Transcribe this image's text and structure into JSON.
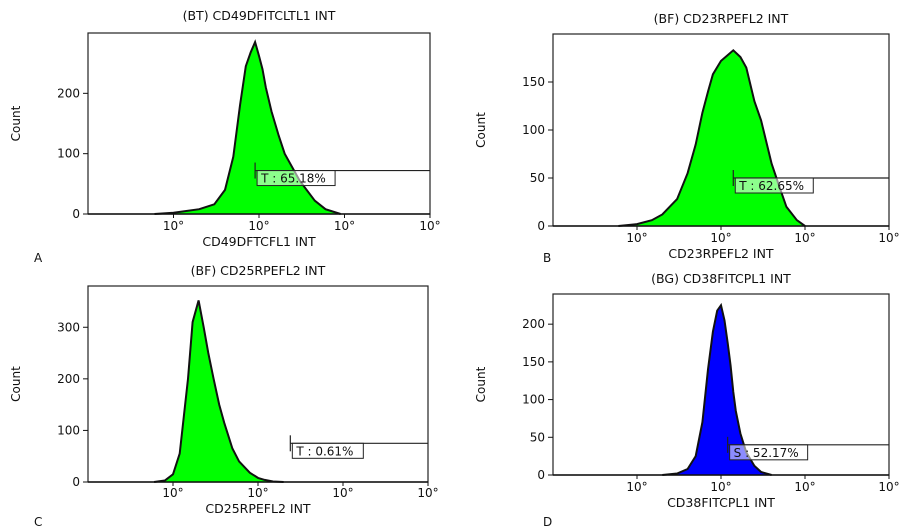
{
  "panels": [
    {
      "letter": "A",
      "chart_data": {
        "type": "area",
        "title": "(BT) CD49DFITCLTL1 INT",
        "xlabel": "CD49DFTCFL1 INT",
        "ylabel": "Count",
        "x_scale": "log",
        "xlim": [
          0.1,
          1000
        ],
        "xticks": [
          1,
          10,
          100,
          1000
        ],
        "xtick_labels": [
          "10°",
          "10°",
          "10°",
          "10°"
        ],
        "ylim": [
          0,
          300
        ],
        "yticks": [
          0,
          100,
          200
        ],
        "fill": "#00ff00",
        "series": [
          {
            "x": [
              0.6,
              1,
              2,
              3,
              4,
              5,
              6,
              7,
              8,
              9,
              10,
              11,
              12,
              14,
              17,
              20,
              30,
              45,
              60,
              90
            ],
            "values": [
              0,
              2,
              8,
              16,
              40,
              95,
              180,
              245,
              268,
              285,
              262,
              240,
              210,
              170,
              130,
              100,
              55,
              22,
              8,
              0
            ]
          }
        ],
        "marker": {
          "label": "T : 65.18%",
          "x_start": 9,
          "x_end": 1000,
          "y": 72
        }
      }
    },
    {
      "letter": "B",
      "chart_data": {
        "type": "area",
        "title": "(BF) CD23RPEFL2 INT",
        "xlabel": "CD23RPEFL2 INT",
        "ylabel": "Count",
        "x_scale": "log",
        "xlim": [
          0.1,
          1000
        ],
        "xticks": [
          1,
          10,
          100,
          1000
        ],
        "xtick_labels": [
          "10°",
          "10°",
          "10°",
          "10°"
        ],
        "ylim": [
          0,
          200
        ],
        "yticks": [
          0,
          50,
          100,
          150
        ],
        "fill": "#00ff00",
        "series": [
          {
            "x": [
              0.6,
              1,
              1.5,
              2,
              3,
              4,
              5,
              6,
              7,
              8,
              10,
              12,
              14,
              17,
              20,
              25,
              30,
              40,
              50,
              60,
              80,
              100
            ],
            "values": [
              0,
              2,
              6,
              12,
              28,
              55,
              85,
              118,
              140,
              158,
              172,
              178,
              183,
              176,
              165,
              130,
              110,
              65,
              40,
              20,
              6,
              0
            ]
          }
        ],
        "marker": {
          "label": "T : 62.65%",
          "x_start": 14,
          "x_end": 1000,
          "y": 50
        }
      }
    },
    {
      "letter": "C",
      "chart_data": {
        "type": "area",
        "title": "(BF) CD25RPEFL2 INT",
        "xlabel": "CD25RPEFL2 INT",
        "ylabel": "Count",
        "x_scale": "log",
        "xlim": [
          0.1,
          1000
        ],
        "xticks": [
          1,
          10,
          100,
          1000
        ],
        "xtick_labels": [
          "10°",
          "10°",
          "10°",
          "10°"
        ],
        "ylim": [
          0,
          380
        ],
        "yticks": [
          0,
          100,
          200,
          300
        ],
        "fill": "#00ff00",
        "series": [
          {
            "x": [
              0.6,
              0.8,
              1,
              1.2,
              1.5,
              1.7,
              2,
              2.3,
              2.6,
              3,
              3.5,
              4,
              5,
              6,
              8,
              10,
              12,
              15,
              20
            ],
            "values": [
              0,
              3,
              15,
              55,
              200,
              310,
              352,
              300,
              250,
              200,
              150,
              115,
              65,
              40,
              18,
              8,
              4,
              1,
              0
            ]
          }
        ],
        "marker": {
          "label": "T : 0.61%",
          "x_start": 24,
          "x_end": 1000,
          "y": 75
        }
      }
    },
    {
      "letter": "D",
      "chart_data": {
        "type": "area",
        "title": "(BG) CD38FITCPL1 INT",
        "xlabel": "CD38FITCPL1 INT",
        "ylabel": "Count",
        "x_scale": "log",
        "xlim": [
          0.1,
          1000
        ],
        "xticks": [
          1,
          10,
          100,
          1000
        ],
        "xtick_labels": [
          "10°",
          "10°",
          "10°",
          "10°"
        ],
        "ylim": [
          0,
          240
        ],
        "yticks": [
          0,
          50,
          100,
          150,
          200
        ],
        "fill": "#0000ff",
        "series": [
          {
            "x": [
              2,
              3,
              4,
              5,
              6,
              7,
              8,
              9,
              10,
              11,
              12,
              13,
              14,
              15,
              17,
              20,
              25,
              30,
              40
            ],
            "values": [
              0,
              2,
              8,
              25,
              70,
              140,
              190,
              218,
              225,
              205,
              175,
              145,
              110,
              85,
              55,
              30,
              12,
              4,
              0
            ]
          }
        ],
        "marker": {
          "label": "S : 52.17%",
          "x_start": 12,
          "x_end": 1000,
          "y": 40
        }
      }
    }
  ]
}
